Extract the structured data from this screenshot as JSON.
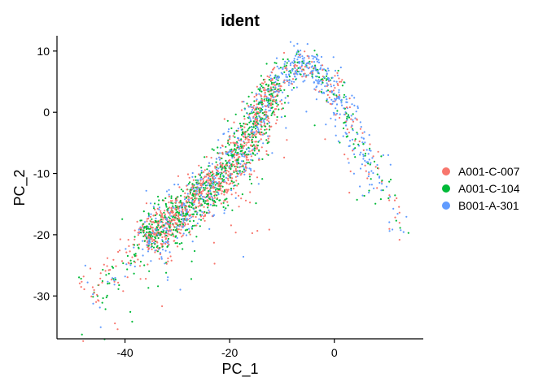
{
  "chart_data": {
    "type": "scatter",
    "title": "ident",
    "xlabel": "PC_1",
    "ylabel": "PC_2",
    "xlim": [
      -53,
      17
    ],
    "ylim": [
      -37,
      12.5
    ],
    "xticks": [
      -40,
      -20,
      0
    ],
    "yticks": [
      10,
      0,
      -10,
      -20,
      -30
    ],
    "grid": false,
    "legend_position": "right",
    "series": [
      {
        "name": "A001-C-007",
        "color": "#F8766D",
        "cluster_fraction": 0.3
      },
      {
        "name": "A001-C-104",
        "color": "#00BA38",
        "cluster_fraction": 0.28
      },
      {
        "name": "B001-A-301",
        "color": "#619CFF",
        "cluster_fraction": 0.42
      }
    ],
    "trend_path": [
      [
        -47,
        -30
      ],
      [
        -40,
        -24
      ],
      [
        -33,
        -19
      ],
      [
        -26,
        -14
      ],
      [
        -20,
        -9
      ],
      [
        -16,
        -4
      ],
      [
        -13,
        2
      ],
      [
        -10,
        6
      ],
      [
        -8,
        8
      ],
      [
        -5,
        8
      ],
      [
        -2,
        6
      ],
      [
        0,
        3
      ],
      [
        3,
        -2
      ],
      [
        6,
        -7
      ],
      [
        9,
        -12
      ],
      [
        11,
        -16
      ],
      [
        14,
        -20
      ]
    ]
  }
}
